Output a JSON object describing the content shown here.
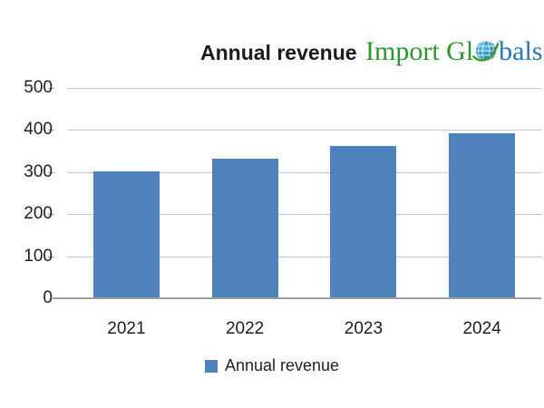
{
  "header": {
    "title": "Annual revenue",
    "logo": {
      "part_green": "Import Gl",
      "part_blue": "bals"
    }
  },
  "chart_data": {
    "type": "bar",
    "title": "Annual revenue",
    "categories": [
      "2021",
      "2022",
      "2023",
      "2024"
    ],
    "series": [
      {
        "name": "Annual revenue",
        "values": [
          300,
          330,
          360,
          390
        ]
      }
    ],
    "xlabel": "",
    "ylabel": "",
    "ylim": [
      0,
      500
    ],
    "yticks": [
      500,
      400,
      300,
      200,
      100,
      0
    ],
    "grid": "horizontal",
    "legend_position": "bottom",
    "bar_color": "#4f81bd"
  },
  "legend": {
    "label": "Annual revenue",
    "swatch_color": "#4f81bd"
  },
  "colors": {
    "title_text": "#1b1b1b",
    "logo_green": "#2e9430",
    "logo_blue": "#2577b5",
    "bar": "#4f81bd",
    "gridline": "#c6c6c6",
    "axis_line": "#9e9e9e",
    "tick_label": "#1f1f1f"
  }
}
